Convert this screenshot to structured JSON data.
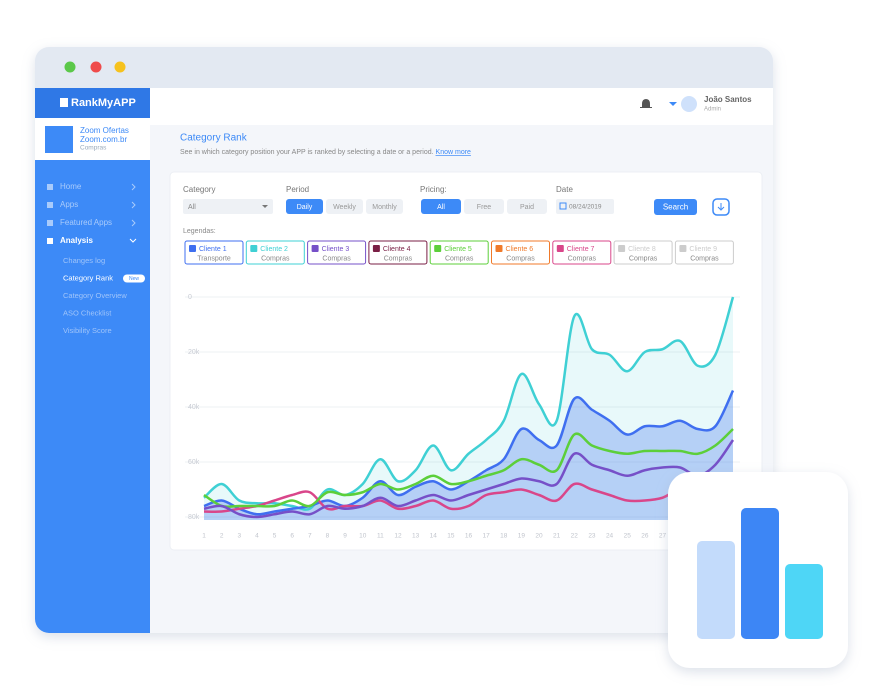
{
  "window": {
    "logo": "RankMyAPP"
  },
  "header": {
    "user_name": "João Santos",
    "user_role": "Admin"
  },
  "app_card": {
    "name": "Zoom Ofertas",
    "site": "Zoom.com.br",
    "category": "Compras"
  },
  "menu": [
    "Home",
    "Apps",
    "Featured Apps",
    "Analysis"
  ],
  "submenu": [
    "Changes log",
    "Category Rank",
    "Category Overview",
    "ASO Checklist",
    "Visibility Score"
  ],
  "badge": "New",
  "page": {
    "title": "Category Rank",
    "subtitle": "See in which category position your APP is ranked by selecting a date or a period.",
    "link": "Know more"
  },
  "filters": {
    "category_label": "Category",
    "category_value": "All",
    "period_label": "Period",
    "periods": [
      "Daily",
      "Weekly",
      "Monthly"
    ],
    "pricing_label": "Pricing:",
    "pricings": [
      "All",
      "Free",
      "Paid"
    ],
    "date_label": "Date",
    "date_value": "08/24/2019",
    "search": "Search",
    "legend_label": "Legendas:"
  },
  "chart_data": {
    "type": "line",
    "categories": [
      "1",
      "2",
      "3",
      "4",
      "5",
      "6",
      "7",
      "8",
      "9",
      "10",
      "11",
      "12",
      "13",
      "14",
      "15",
      "16",
      "17",
      "18",
      "19",
      "20",
      "21",
      "22",
      "23",
      "24",
      "25",
      "26",
      "27",
      "28",
      "29",
      "30",
      "31"
    ],
    "ylim": [
      80000,
      0
    ],
    "yticks": [
      0,
      {
        "value": 20000,
        "label": "20k"
      },
      {
        "value": 40000,
        "label": "40k"
      },
      {
        "value": 60000,
        "label": "60k"
      },
      {
        "value": 80000,
        "label": "80k"
      }
    ],
    "grid": true,
    "series": [
      {
        "name": "Cliente 1",
        "subtitle": "Transporte",
        "color": "#3f6ff0",
        "area": true,
        "values": [
          76000,
          74000,
          77000,
          79000,
          78000,
          77000,
          76000,
          74000,
          76000,
          73000,
          67000,
          72000,
          69000,
          67000,
          70000,
          67000,
          63000,
          59000,
          48000,
          52000,
          54000,
          37000,
          41000,
          45000,
          50000,
          47000,
          47000,
          45000,
          48000,
          47000,
          34000
        ]
      },
      {
        "name": "Cliente 2",
        "subtitle": "Compras",
        "color": "#3fd0d4",
        "area": true,
        "values": [
          73000,
          68000,
          74000,
          75000,
          75000,
          76000,
          77000,
          70000,
          72000,
          68000,
          59000,
          67000,
          63000,
          54000,
          63000,
          57000,
          52000,
          45000,
          28000,
          39000,
          45000,
          7000,
          19000,
          21000,
          27000,
          20000,
          19000,
          16000,
          25000,
          21000,
          0
        ]
      },
      {
        "name": "Cliente 3",
        "subtitle": "Compras",
        "color": "#7650c8",
        "values": [
          77000,
          76000,
          79000,
          80000,
          79000,
          78000,
          79000,
          76000,
          77000,
          76000,
          73000,
          76000,
          74000,
          72000,
          74000,
          72000,
          70000,
          68000,
          66000,
          67000,
          68000,
          57000,
          61000,
          63000,
          65000,
          63000,
          62000,
          62000,
          65000,
          61000,
          52000
        ]
      },
      {
        "name": "Cliente 4",
        "subtitle": "Compras",
        "color": "#7a1f45",
        "values": [
          null,
          null,
          null,
          null,
          null,
          null,
          null,
          null,
          null,
          null,
          null,
          null,
          null,
          null,
          null,
          null,
          null,
          null,
          null,
          null,
          null,
          null,
          null,
          null,
          null,
          null,
          null,
          null,
          null,
          null,
          null
        ]
      },
      {
        "name": "Cliente 5",
        "subtitle": "Compras",
        "color": "#5ccf3a",
        "values": [
          72000,
          76000,
          76000,
          76000,
          76000,
          74000,
          76000,
          71000,
          72000,
          71000,
          68000,
          70000,
          68000,
          65000,
          68000,
          67000,
          65000,
          63000,
          59000,
          61000,
          63000,
          50000,
          54000,
          56000,
          57000,
          56000,
          56000,
          56000,
          57000,
          54000,
          48000
        ]
      },
      {
        "name": "Cliente 6",
        "subtitle": "Compras",
        "color": "#f07a2a",
        "values": [
          null,
          null,
          null,
          null,
          null,
          null,
          null,
          null,
          null,
          null,
          null,
          null,
          null,
          null,
          null,
          null,
          null,
          null,
          null,
          null,
          null,
          null,
          null,
          null,
          null,
          null,
          null,
          null,
          null,
          null,
          null
        ]
      },
      {
        "name": "Cliente 7",
        "subtitle": "Compras",
        "color": "#d9468a",
        "values": [
          78000,
          78000,
          77000,
          76000,
          74000,
          72000,
          71000,
          77000,
          76000,
          76000,
          74000,
          77000,
          76000,
          74000,
          77000,
          76000,
          72000,
          71000,
          70000,
          72000,
          74000,
          68000,
          70000,
          72000,
          74000,
          74000,
          73000,
          70000,
          72000,
          74000,
          68000
        ]
      },
      {
        "name": "Cliente 8",
        "subtitle": "Compras",
        "color": "#cccccc",
        "values": [
          null,
          null,
          null,
          null,
          null,
          null,
          null,
          null,
          null,
          null,
          null,
          null,
          null,
          null,
          null,
          null,
          null,
          null,
          null,
          null,
          null,
          null,
          null,
          null,
          null,
          null,
          null,
          null,
          null,
          null,
          null
        ]
      },
      {
        "name": "Cliente 9",
        "subtitle": "Compras",
        "color": "#cccccc",
        "values": [
          null,
          null,
          null,
          null,
          null,
          null,
          null,
          null,
          null,
          null,
          null,
          null,
          null,
          null,
          null,
          null,
          null,
          null,
          null,
          null,
          null,
          null,
          null,
          null,
          null,
          null,
          null,
          null,
          null,
          null,
          null
        ]
      }
    ]
  }
}
